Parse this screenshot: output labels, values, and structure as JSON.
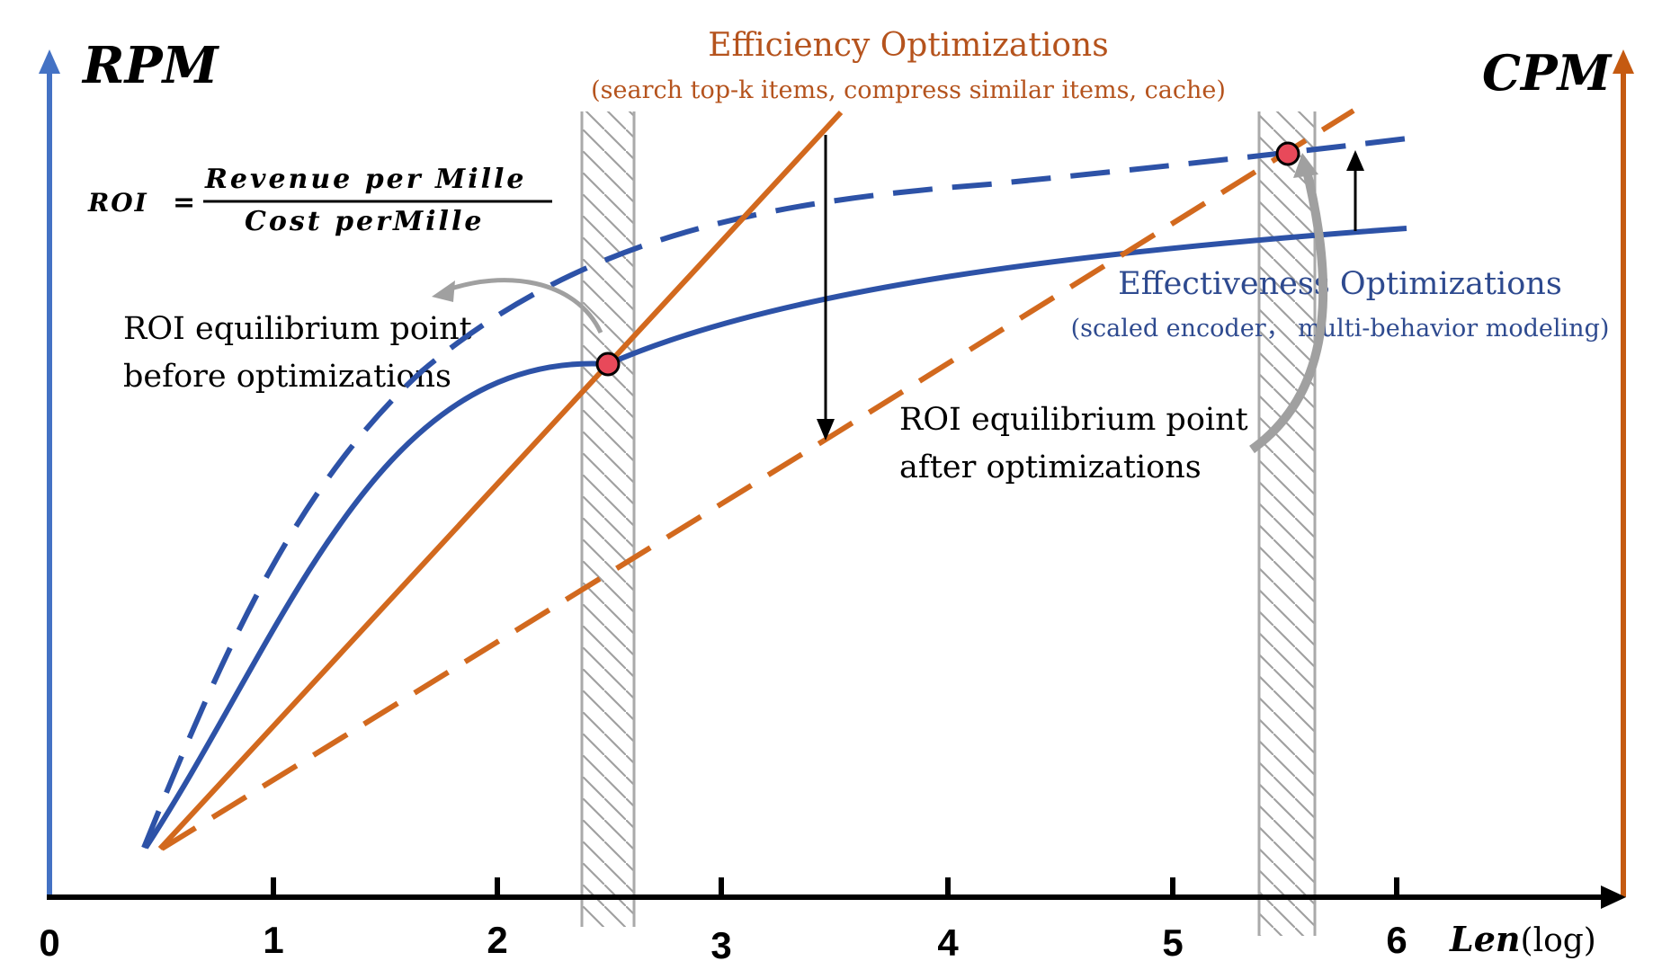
{
  "axes": {
    "left_label": "RPM",
    "right_label": "CPM",
    "x_label_main": "Len",
    "x_label_suffix": "(log)",
    "x_ticks": [
      "0",
      "1",
      "2",
      "3",
      "4",
      "5",
      "6"
    ],
    "colors": {
      "left_axis": "#4472c4",
      "right_axis": "#c55a11",
      "x_axis": "#000000"
    }
  },
  "formula": {
    "lhs": "ROI",
    "equals": "=",
    "numerator": "Revenue per Mille",
    "denominator": "Cost perMille"
  },
  "efficiency": {
    "title": "Efficiency Optimizations",
    "subtitle": "(search top-k items, compress similar items, cache)",
    "color": "#b5531d"
  },
  "effectiveness": {
    "title": "Effectiveness Optimizations",
    "subtitle": "(scaled encoder， multi-behavior modeling)",
    "color": "#2e4a8f"
  },
  "annotations": {
    "before": [
      "ROI equilibrium point",
      "before optimizations"
    ],
    "after": [
      "ROI equilibrium point",
      "after optimizations"
    ]
  },
  "series": {
    "rpm_before": {
      "name": "RPM before optimizations",
      "style": "solid",
      "color": "#2d52a7"
    },
    "rpm_after": {
      "name": "RPM after optimizations",
      "style": "dashed",
      "color": "#2d52a7"
    },
    "cpm_before": {
      "name": "CPM before optimizations",
      "style": "solid",
      "color": "#d2691e"
    },
    "cpm_after": {
      "name": "CPM after optimizations",
      "style": "dashed",
      "color": "#d2691e"
    }
  },
  "equilibrium_points": [
    {
      "name": "before optimizations",
      "len_log": 2.5
    },
    {
      "name": "after optimizations",
      "len_log": 5.5
    }
  ],
  "point_color": "#e8495a"
}
